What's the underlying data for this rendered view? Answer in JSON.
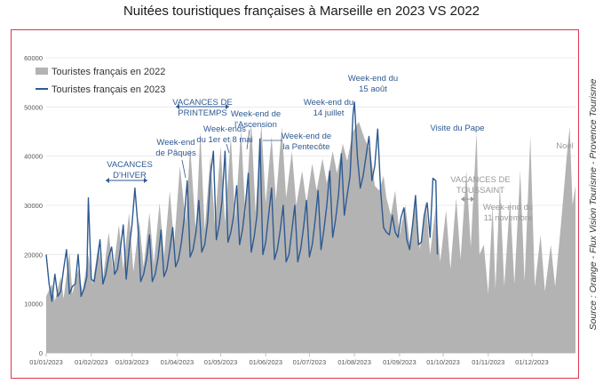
{
  "chart_data": {
    "type": "area+line",
    "title": "Nuitées touristiques françaises à Marseille en 2023 VS 2022",
    "source": "Source : Orange - Flux Vision Tourisme - Provence Tourisme",
    "ylim": [
      0,
      60000
    ],
    "yticks": [
      0,
      10000,
      20000,
      30000,
      40000,
      50000,
      60000
    ],
    "xlim": [
      0,
      364
    ],
    "xticks": [
      {
        "day": 0,
        "label": "01/01/2023"
      },
      {
        "day": 31,
        "label": "01/02/2023"
      },
      {
        "day": 59,
        "label": "01/03/2023"
      },
      {
        "day": 90,
        "label": "01/04/2023"
      },
      {
        "day": 120,
        "label": "01/05/2023"
      },
      {
        "day": 151,
        "label": "01/06/2023"
      },
      {
        "day": 181,
        "label": "01/07/2023"
      },
      {
        "day": 212,
        "label": "01/08/2023"
      },
      {
        "day": 243,
        "label": "01/09/2023"
      },
      {
        "day": 273,
        "label": "01/10/2023"
      },
      {
        "day": 304,
        "label": "01/11/2023"
      },
      {
        "day": 334,
        "label": "01/12/2023"
      }
    ],
    "series": [
      {
        "name": "Touristes français en 2022",
        "kind": "area",
        "color": "#b3b3b3",
        "points": [
          [
            0,
            11500
          ],
          [
            4,
            14000
          ],
          [
            6,
            10500
          ],
          [
            10,
            15500
          ],
          [
            12,
            11000
          ],
          [
            16,
            20500
          ],
          [
            18,
            12000
          ],
          [
            22,
            17000
          ],
          [
            25,
            12500
          ],
          [
            29,
            20000
          ],
          [
            32,
            14000
          ],
          [
            36,
            22000
          ],
          [
            39,
            15000
          ],
          [
            43,
            24500
          ],
          [
            46,
            16500
          ],
          [
            50,
            26000
          ],
          [
            53,
            17000
          ],
          [
            57,
            28500
          ],
          [
            60,
            16500
          ],
          [
            64,
            27000
          ],
          [
            67,
            17500
          ],
          [
            71,
            28500
          ],
          [
            74,
            18000
          ],
          [
            78,
            30500
          ],
          [
            81,
            19500
          ],
          [
            85,
            33000
          ],
          [
            88,
            22000
          ],
          [
            92,
            38000
          ],
          [
            96,
            26500
          ],
          [
            99,
            42000
          ],
          [
            103,
            24500
          ],
          [
            106,
            45000
          ],
          [
            109,
            25000
          ],
          [
            113,
            40000
          ],
          [
            116,
            26000
          ],
          [
            120,
            42000
          ],
          [
            123,
            26500
          ],
          [
            127,
            44000
          ],
          [
            130,
            27000
          ],
          [
            134,
            45500
          ],
          [
            137,
            28000
          ],
          [
            141,
            47000
          ],
          [
            144,
            28500
          ],
          [
            148,
            46500
          ],
          [
            151,
            30500
          ],
          [
            155,
            44000
          ],
          [
            158,
            31000
          ],
          [
            162,
            46000
          ],
          [
            165,
            31500
          ],
          [
            169,
            41000
          ],
          [
            172,
            30000
          ],
          [
            176,
            37000
          ],
          [
            179,
            30500
          ],
          [
            183,
            38500
          ],
          [
            186,
            33000
          ],
          [
            190,
            39500
          ],
          [
            193,
            34500
          ],
          [
            197,
            41000
          ],
          [
            200,
            36500
          ],
          [
            204,
            42500
          ],
          [
            207,
            39000
          ],
          [
            211,
            45000
          ],
          [
            215,
            47000
          ],
          [
            219,
            43500
          ],
          [
            223,
            41000
          ],
          [
            226,
            34000
          ],
          [
            229,
            33000
          ],
          [
            232,
            36000
          ],
          [
            234,
            31500
          ],
          [
            237,
            28000
          ],
          [
            240,
            33000
          ],
          [
            243,
            24000
          ],
          [
            247,
            30000
          ],
          [
            250,
            22500
          ],
          [
            254,
            31500
          ],
          [
            257,
            21000
          ],
          [
            261,
            31000
          ],
          [
            264,
            20000
          ],
          [
            268,
            30000
          ],
          [
            271,
            18500
          ],
          [
            275,
            29000
          ],
          [
            278,
            17000
          ],
          [
            282,
            31500
          ],
          [
            285,
            19000
          ],
          [
            289,
            37000
          ],
          [
            292,
            21500
          ],
          [
            296,
            45000
          ],
          [
            298,
            20000
          ],
          [
            301,
            22000
          ],
          [
            304,
            12000
          ],
          [
            307,
            30000
          ],
          [
            309,
            13000
          ],
          [
            312,
            34000
          ],
          [
            315,
            13500
          ],
          [
            319,
            31000
          ],
          [
            322,
            14000
          ],
          [
            326,
            37000
          ],
          [
            329,
            14500
          ],
          [
            333,
            44000
          ],
          [
            336,
            13500
          ],
          [
            340,
            24000
          ],
          [
            343,
            12500
          ],
          [
            347,
            22000
          ],
          [
            350,
            13500
          ],
          [
            354,
            26000
          ],
          [
            358,
            40000
          ],
          [
            360,
            46000
          ],
          [
            362,
            30000
          ],
          [
            364,
            34000
          ]
        ]
      },
      {
        "name": "Touristes français en 2023",
        "kind": "line",
        "color": "#2e5a92",
        "points": [
          [
            0,
            20000
          ],
          [
            2,
            14000
          ],
          [
            4,
            10500
          ],
          [
            6,
            16000
          ],
          [
            8,
            11500
          ],
          [
            10,
            12500
          ],
          [
            12,
            17000
          ],
          [
            14,
            21000
          ],
          [
            16,
            12000
          ],
          [
            18,
            13500
          ],
          [
            20,
            14000
          ],
          [
            22,
            20000
          ],
          [
            24,
            11500
          ],
          [
            26,
            13000
          ],
          [
            28,
            15500
          ],
          [
            29,
            31500
          ],
          [
            31,
            15000
          ],
          [
            33,
            14500
          ],
          [
            35,
            18500
          ],
          [
            37,
            23000
          ],
          [
            39,
            14000
          ],
          [
            41,
            16000
          ],
          [
            43,
            19500
          ],
          [
            45,
            21500
          ],
          [
            47,
            16000
          ],
          [
            49,
            17000
          ],
          [
            51,
            21000
          ],
          [
            53,
            26000
          ],
          [
            55,
            15000
          ],
          [
            57,
            21000
          ],
          [
            59,
            26000
          ],
          [
            61,
            33500
          ],
          [
            63,
            26000
          ],
          [
            65,
            14500
          ],
          [
            67,
            16000
          ],
          [
            69,
            19000
          ],
          [
            71,
            24000
          ],
          [
            73,
            14500
          ],
          [
            75,
            16000
          ],
          [
            77,
            19500
          ],
          [
            79,
            25000
          ],
          [
            81,
            15500
          ],
          [
            83,
            17000
          ],
          [
            85,
            21000
          ],
          [
            87,
            25500
          ],
          [
            89,
            17500
          ],
          [
            91,
            19000
          ],
          [
            93,
            22500
          ],
          [
            95,
            27500
          ],
          [
            97,
            35000
          ],
          [
            99,
            19500
          ],
          [
            101,
            21000
          ],
          [
            103,
            24500
          ],
          [
            105,
            31000
          ],
          [
            107,
            20500
          ],
          [
            109,
            22000
          ],
          [
            111,
            26500
          ],
          [
            113,
            36000
          ],
          [
            115,
            41000
          ],
          [
            117,
            23000
          ],
          [
            119,
            26000
          ],
          [
            121,
            31000
          ],
          [
            123,
            41000
          ],
          [
            125,
            22500
          ],
          [
            127,
            24500
          ],
          [
            129,
            28000
          ],
          [
            131,
            34000
          ],
          [
            133,
            22000
          ],
          [
            135,
            25000
          ],
          [
            137,
            30000
          ],
          [
            139,
            36500
          ],
          [
            141,
            20500
          ],
          [
            143,
            23500
          ],
          [
            145,
            28000
          ],
          [
            147,
            43500
          ],
          [
            149,
            20000
          ],
          [
            151,
            22500
          ],
          [
            153,
            28000
          ],
          [
            155,
            33500
          ],
          [
            157,
            19000
          ],
          [
            159,
            21000
          ],
          [
            161,
            25000
          ],
          [
            163,
            30000
          ],
          [
            165,
            18500
          ],
          [
            167,
            20000
          ],
          [
            169,
            25000
          ],
          [
            171,
            30000
          ],
          [
            173,
            18500
          ],
          [
            175,
            21000
          ],
          [
            177,
            25500
          ],
          [
            179,
            31000
          ],
          [
            181,
            19500
          ],
          [
            183,
            22000
          ],
          [
            185,
            27000
          ],
          [
            187,
            33000
          ],
          [
            189,
            21000
          ],
          [
            191,
            25000
          ],
          [
            193,
            30000
          ],
          [
            195,
            37000
          ],
          [
            197,
            23500
          ],
          [
            199,
            27000
          ],
          [
            201,
            32000
          ],
          [
            203,
            40500
          ],
          [
            205,
            28000
          ],
          [
            207,
            32000
          ],
          [
            209,
            36000
          ],
          [
            211,
            48500
          ],
          [
            212,
            51000
          ],
          [
            214,
            40000
          ],
          [
            216,
            33500
          ],
          [
            218,
            36000
          ],
          [
            220,
            40000
          ],
          [
            222,
            44000
          ],
          [
            224,
            35000
          ],
          [
            226,
            38000
          ],
          [
            228,
            45500
          ],
          [
            230,
            33000
          ],
          [
            232,
            25500
          ],
          [
            234,
            24500
          ],
          [
            236,
            24000
          ],
          [
            238,
            28000
          ],
          [
            240,
            24500
          ],
          [
            242,
            23500
          ],
          [
            244,
            27500
          ],
          [
            246,
            29500
          ],
          [
            248,
            23000
          ],
          [
            250,
            21000
          ],
          [
            252,
            26000
          ],
          [
            254,
            32000
          ],
          [
            256,
            22000
          ],
          [
            258,
            22500
          ],
          [
            260,
            28000
          ],
          [
            262,
            30500
          ],
          [
            264,
            23500
          ],
          [
            266,
            35500
          ],
          [
            268,
            35000
          ],
          [
            269,
            20000
          ]
        ]
      }
    ],
    "legend": {
      "position": "top-left",
      "items": [
        "Touristes français en 2022",
        "Touristes français en 2023"
      ]
    },
    "annotations": [
      {
        "id": "hiver",
        "lines": [
          "VACANCES",
          "D'HIVER"
        ],
        "style": "period",
        "color": "#2e5a92"
      },
      {
        "id": "printemps",
        "lines": [
          "VACANCES DE",
          "PRINTEMPS"
        ],
        "style": "period",
        "color": "#2e5a92"
      },
      {
        "id": "paques",
        "lines": [
          "Week-end",
          "de Pâques"
        ],
        "style": "event",
        "color": "#2e5a92"
      },
      {
        "id": "mai",
        "lines": [
          "Week-ends",
          "du 1er et 8 mai"
        ],
        "style": "event",
        "color": "#2e5a92"
      },
      {
        "id": "ascension",
        "lines": [
          "Week-end de",
          "l'Ascension"
        ],
        "style": "event",
        "color": "#2e5a92"
      },
      {
        "id": "pentecote",
        "lines": [
          "Week-end de",
          "la Pentecôte"
        ],
        "style": "event",
        "color": "#2e5a92"
      },
      {
        "id": "juillet",
        "lines": [
          "Week-end du",
          "14 juillet"
        ],
        "style": "event",
        "color": "#2e5a92"
      },
      {
        "id": "aout",
        "lines": [
          "Week-end du",
          "15 août"
        ],
        "style": "event",
        "color": "#2e5a92"
      },
      {
        "id": "pape",
        "lines": [
          "Visite du Pape"
        ],
        "style": "event",
        "color": "#2e5a92"
      },
      {
        "id": "toussaint",
        "lines": [
          "VACANCES DE",
          "TOUSSAINT"
        ],
        "style": "period",
        "color": "#9a9a9a"
      },
      {
        "id": "novembre",
        "lines": [
          "Week-end du",
          "11 novembre"
        ],
        "style": "event",
        "color": "#9a9a9a"
      },
      {
        "id": "noel",
        "lines": [
          "Noël"
        ],
        "style": "event",
        "color": "#9a9a9a"
      }
    ]
  }
}
